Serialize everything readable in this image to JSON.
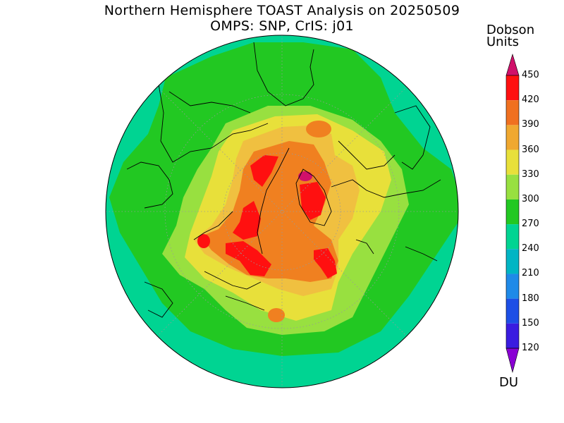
{
  "title": {
    "line1": "Northern Hemisphere TOAST Analysis on 20250509",
    "line2": "OMPS: SNP, CrIS: j01"
  },
  "colorbar": {
    "title_line1": "Dobson",
    "title_line2": "Units",
    "unit": "DU",
    "ticks": [
      "120",
      "150",
      "180",
      "210",
      "240",
      "270",
      "300",
      "330",
      "360",
      "390",
      "420",
      "450"
    ],
    "colors": [
      "#8a00d4",
      "#3a1ce0",
      "#1d4fe6",
      "#1f8ae8",
      "#00b5c4",
      "#00d492",
      "#22c822",
      "#98e040",
      "#e8e03a",
      "#f0a830",
      "#f07020",
      "#ff1010",
      "#d0106a"
    ]
  },
  "legend_colors": {
    "below_270": "#00d492",
    "270_300": "#22c822",
    "300_330": "#98e040",
    "330_360": "#e8e03a",
    "360_390": "#f0c040",
    "390_420": "#f08020",
    "420_450": "#ff1010",
    "above_450": "#d0106a"
  }
}
